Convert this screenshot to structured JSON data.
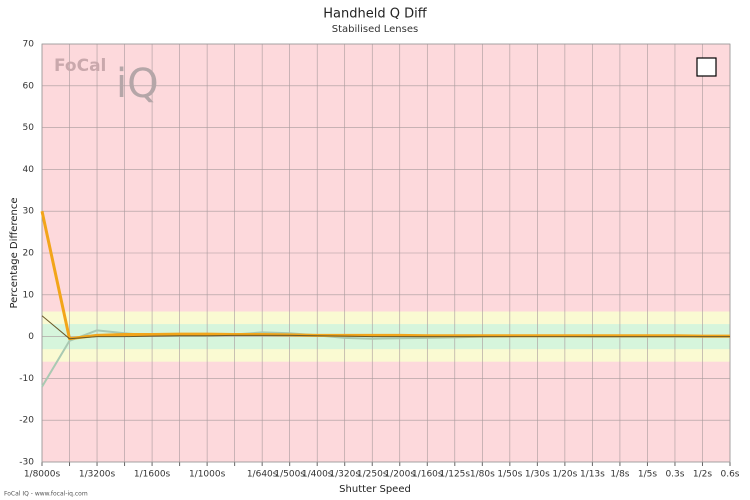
{
  "chart_data": {
    "type": "line",
    "title": "Handheld Q Diff",
    "subtitle": "Stabilised Lenses",
    "x_label": "Shutter Speed",
    "y_label": "Percentage Difference",
    "footer": "FoCal IQ - www.focal-iq.com",
    "watermark": [
      "FoCal",
      "iQ"
    ],
    "background": "#fdd9dc",
    "bands": [
      {
        "from": -6,
        "to": 6,
        "color": "#fafad2"
      },
      {
        "from": -3,
        "to": 3,
        "color": "#d6f5dc"
      }
    ],
    "categories": [
      "1/8000s",
      null,
      "1/3200s",
      null,
      "1/1600s",
      null,
      "1/1000s",
      null,
      "1/640s",
      "1/500s",
      "1/400s",
      "1/320s",
      "1/250s",
      "1/200s",
      "1/160s",
      "1/125s",
      "1/80s",
      "1/50s",
      "1/30s",
      "1/20s",
      "1/13s",
      "1/8s",
      "1/5s",
      "0.3s",
      "1/2s",
      "0.6s"
    ],
    "series": [
      {
        "color": "#a9c9b2",
        "width": 2,
        "values": [
          -12,
          -1,
          1.5,
          0.8,
          0.3,
          0.2,
          0.2,
          0.5,
          1,
          0.8,
          0.3,
          -0.3,
          -0.5,
          -0.4,
          -0.3,
          -0.2,
          0,
          0.1,
          0.2,
          0.1,
          0,
          0,
          0,
          0,
          0,
          0
        ]
      },
      {
        "color": "#f2a51a",
        "width": 3,
        "values": [
          30,
          -0.5,
          0.3,
          0.5,
          0.5,
          0.6,
          0.6,
          0.5,
          0.5,
          0.4,
          0.3,
          0.3,
          0.3,
          0.3,
          0.2,
          0.2,
          0.2,
          0.2,
          0.2,
          0.2,
          0.2,
          0.2,
          0.2,
          0.2,
          0.1,
          0.1
        ]
      },
      {
        "color": "#6b5a2a",
        "width": 1,
        "values": [
          5,
          -0.5,
          0,
          0,
          0.1,
          0.2,
          0.2,
          0.3,
          0.3,
          0.3,
          0.2,
          0.1,
          0,
          0,
          0,
          0,
          0,
          0,
          0,
          0,
          0,
          0,
          0,
          0,
          0,
          0
        ]
      }
    ],
    "ylim": [
      -30,
      70
    ],
    "yticks": [
      -30,
      -20,
      -10,
      0,
      10,
      20,
      30,
      40,
      50,
      60,
      70
    ],
    "grid": true
  }
}
